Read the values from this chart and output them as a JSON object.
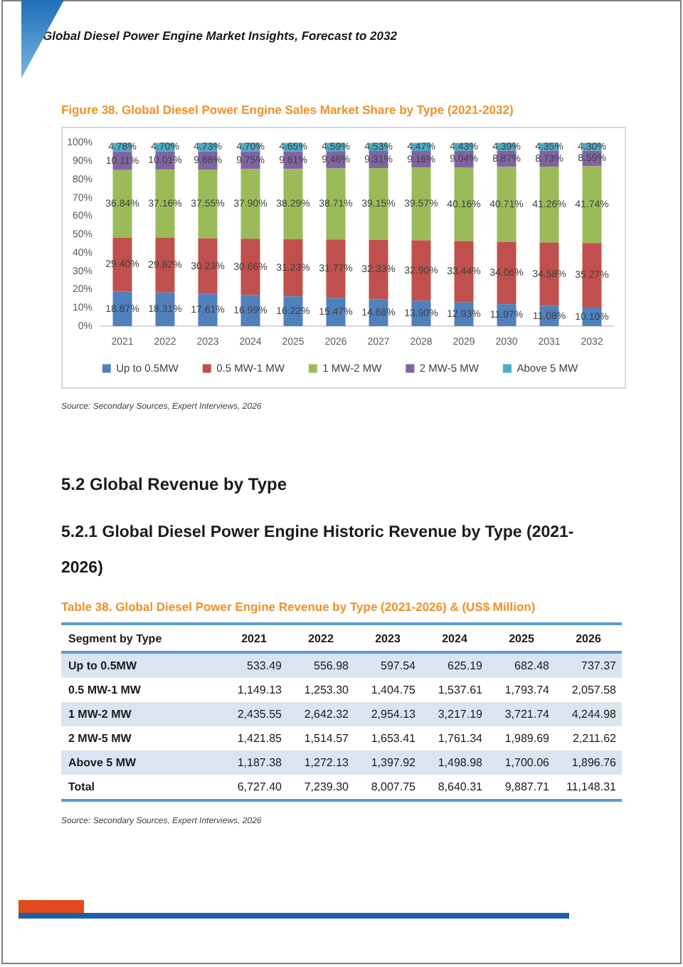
{
  "chart_data": [
    {
      "type": "other",
      "title": "Global Diesel Power Engine Market Insights, Forecast to 2032"
    },
    {
      "type": "bar",
      "title": "Figure 38. Global Diesel Power Engine Sales Market Share by Type (2021-2032)",
      "categories": [
        "2021",
        "2022",
        "2023",
        "2024",
        "2025",
        "2026",
        "2027",
        "2028",
        "2029",
        "2030",
        "2031",
        "2032"
      ],
      "series": [
        {
          "name": "Up to 0.5MW",
          "color": "#4f81bd",
          "values": [
            18.87,
            18.31,
            17.61,
            16.99,
            16.22,
            15.47,
            14.68,
            13.9,
            12.93,
            11.97,
            11.08,
            10.1
          ],
          "value_labels": [
            "18.87%",
            "18.31%",
            "17.61%",
            "16.99%",
            "16.22%",
            "15.47%",
            "14.68%",
            "13.90%",
            "12.93%",
            "11.97%",
            "11.08%",
            "10.10%"
          ]
        },
        {
          "name": "0.5 MW-1 MW",
          "color": "#c0504d",
          "values": [
            29.4,
            29.82,
            30.23,
            30.66,
            31.23,
            31.77,
            32.33,
            32.9,
            33.44,
            34.06,
            34.58,
            35.27
          ],
          "value_labels": [
            "29.40%",
            "29.82%",
            "30.23%",
            "30.66%",
            "31.23%",
            "31.77%",
            "32.33%",
            "32.90%",
            "33.44%",
            "34.06%",
            "34.58%",
            "35.27%"
          ]
        },
        {
          "name": "1 MW-2 MW",
          "color": "#9bbb59",
          "values": [
            36.84,
            37.16,
            37.55,
            37.9,
            38.29,
            38.71,
            39.15,
            39.57,
            40.16,
            40.71,
            41.26,
            41.74
          ],
          "value_labels": [
            "36.84%",
            "37.16%",
            "37.55%",
            "37.90%",
            "38.29%",
            "38.71%",
            "39.15%",
            "39.57%",
            "40.16%",
            "40.71%",
            "41.26%",
            "41.74%"
          ]
        },
        {
          "name": "2 MW-5 MW",
          "color": "#8064a2",
          "values": [
            10.11,
            10.01,
            9.88,
            9.75,
            9.61,
            9.46,
            9.31,
            9.16,
            9.04,
            8.87,
            8.73,
            8.59
          ],
          "value_labels": [
            "10.11%",
            "10.01%",
            "9.88%",
            "9.75%",
            "9.61%",
            "9.46%",
            "9.31%",
            "9.16%",
            "9.04%",
            "8.87%",
            "8.73%",
            "8.59%"
          ]
        },
        {
          "name": "Above 5 MW",
          "color": "#4bacc6",
          "values": [
            4.78,
            4.7,
            4.73,
            4.7,
            4.65,
            4.59,
            4.53,
            4.47,
            4.43,
            4.39,
            4.35,
            4.3
          ],
          "value_labels": [
            "4.78%",
            "4.70%",
            "4.73%",
            "4.70%",
            "4.65%",
            "4.59%",
            "4.53%",
            "4.47%",
            "4.43%",
            "4.39%",
            "4.35%",
            "4.30%"
          ]
        }
      ],
      "stacked": true,
      "ylim": [
        0,
        100
      ],
      "yticks": [
        {
          "value": 0,
          "label": "0%"
        },
        {
          "value": 10,
          "label": "10%"
        },
        {
          "value": 20,
          "label": "20%"
        },
        {
          "value": 30,
          "label": "30%"
        },
        {
          "value": 40,
          "label": "40%"
        },
        {
          "value": 50,
          "label": "50%"
        },
        {
          "value": 60,
          "label": "60%"
        },
        {
          "value": 70,
          "label": "70%"
        },
        {
          "value": 80,
          "label": "80%"
        },
        {
          "value": 90,
          "label": "90%"
        },
        {
          "value": 100,
          "label": "100%"
        }
      ],
      "legend": "bottom",
      "annotations": [
        "Source: Secondary Sources, Expert Interviews, 2026"
      ]
    },
    {
      "type": "other",
      "title": "5.2 Global Revenue by Type",
      "subtitle": "5.2.1 Global Diesel Power Engine Historic Revenue by Type (2021-2026)"
    },
    {
      "type": "heatmap",
      "title": "Table 38. Global Diesel Power Engine Revenue by Type (2021-2026) & (US$ Million)",
      "ylabel": "Segment by Type",
      "categories": [
        "2021",
        "2022",
        "2023",
        "2024",
        "2025",
        "2026"
      ],
      "y_categories": [
        "Up to 0.5MW",
        "0.5 MW-1 MW",
        "1 MW-2 MW",
        "2 MW-5 MW",
        "Above 5 MW",
        "Total"
      ],
      "cells": [
        [
          533.49,
          556.98,
          597.54,
          625.19,
          682.48,
          737.37
        ],
        [
          1149.13,
          1253.3,
          1404.75,
          1537.61,
          1793.74,
          2057.58
        ],
        [
          2435.55,
          2642.32,
          2954.13,
          3217.19,
          3721.74,
          4244.98
        ],
        [
          1421.85,
          1514.57,
          1653.41,
          1761.34,
          1989.69,
          2211.62
        ],
        [
          1187.38,
          1272.13,
          1397.92,
          1498.98,
          1700.06,
          1896.76
        ],
        [
          6727.4,
          7239.3,
          8007.75,
          8640.31,
          9887.71,
          11148.31
        ]
      ],
      "cell_labels": [
        [
          "533.49",
          "556.98",
          "597.54",
          "625.19",
          "682.48",
          "737.37"
        ],
        [
          "1,149.13",
          "1,253.30",
          "1,404.75",
          "1,537.61",
          "1,793.74",
          "2,057.58"
        ],
        [
          "2,435.55",
          "2,642.32",
          "2,954.13",
          "3,217.19",
          "3,721.74",
          "4,244.98"
        ],
        [
          "1,421.85",
          "1,514.57",
          "1,653.41",
          "1,761.34",
          "1,989.69",
          "2,211.62"
        ],
        [
          "1,187.38",
          "1,272.13",
          "1,397.92",
          "1,498.98",
          "1,700.06",
          "1,896.76"
        ],
        [
          "6,727.40",
          "7,239.30",
          "8,007.75",
          "8,640.31",
          "9,887.71",
          "11,148.31"
        ]
      ],
      "data_labels": true,
      "annotations": [
        "Source: Secondary Sources, Expert Interviews, 2026"
      ]
    }
  ]
}
